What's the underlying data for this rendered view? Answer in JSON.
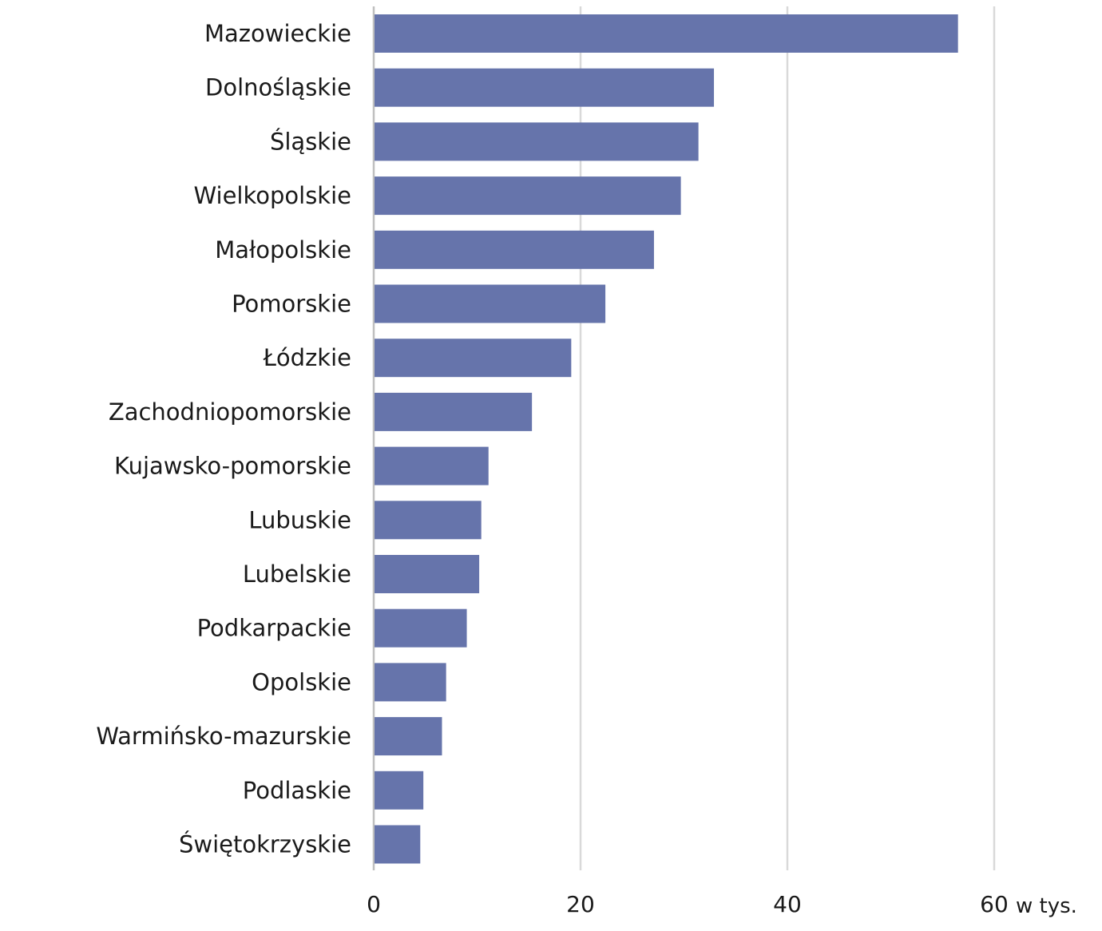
{
  "chart_data": {
    "type": "bar",
    "orientation": "horizontal",
    "categories": [
      "Mazowieckie",
      "Dolnośląskie",
      "Śląskie",
      "Wielkopolskie",
      "Małopolskie",
      "Pomorskie",
      "Łódzkie",
      "Zachodniopomorskie",
      "Kujawsko-pomorskie",
      "Lubuskie",
      "Lubelskie",
      "Podkarpackie",
      "Opolskie",
      "Warmińsko-mazurskie",
      "Podlaskie",
      "Świętokrzyskie"
    ],
    "values": [
      56.5,
      32.9,
      31.4,
      29.7,
      27.1,
      22.4,
      19.1,
      15.3,
      11.1,
      10.4,
      10.2,
      9.0,
      7.0,
      6.6,
      4.8,
      4.5
    ],
    "xlim": [
      0,
      60
    ],
    "xticks": [
      "0",
      "20",
      "40",
      "60"
    ],
    "xtick_values": [
      0,
      20,
      40,
      60
    ],
    "unit_label": "w tys.",
    "bar_color": "#6674ab",
    "grid": true
  }
}
